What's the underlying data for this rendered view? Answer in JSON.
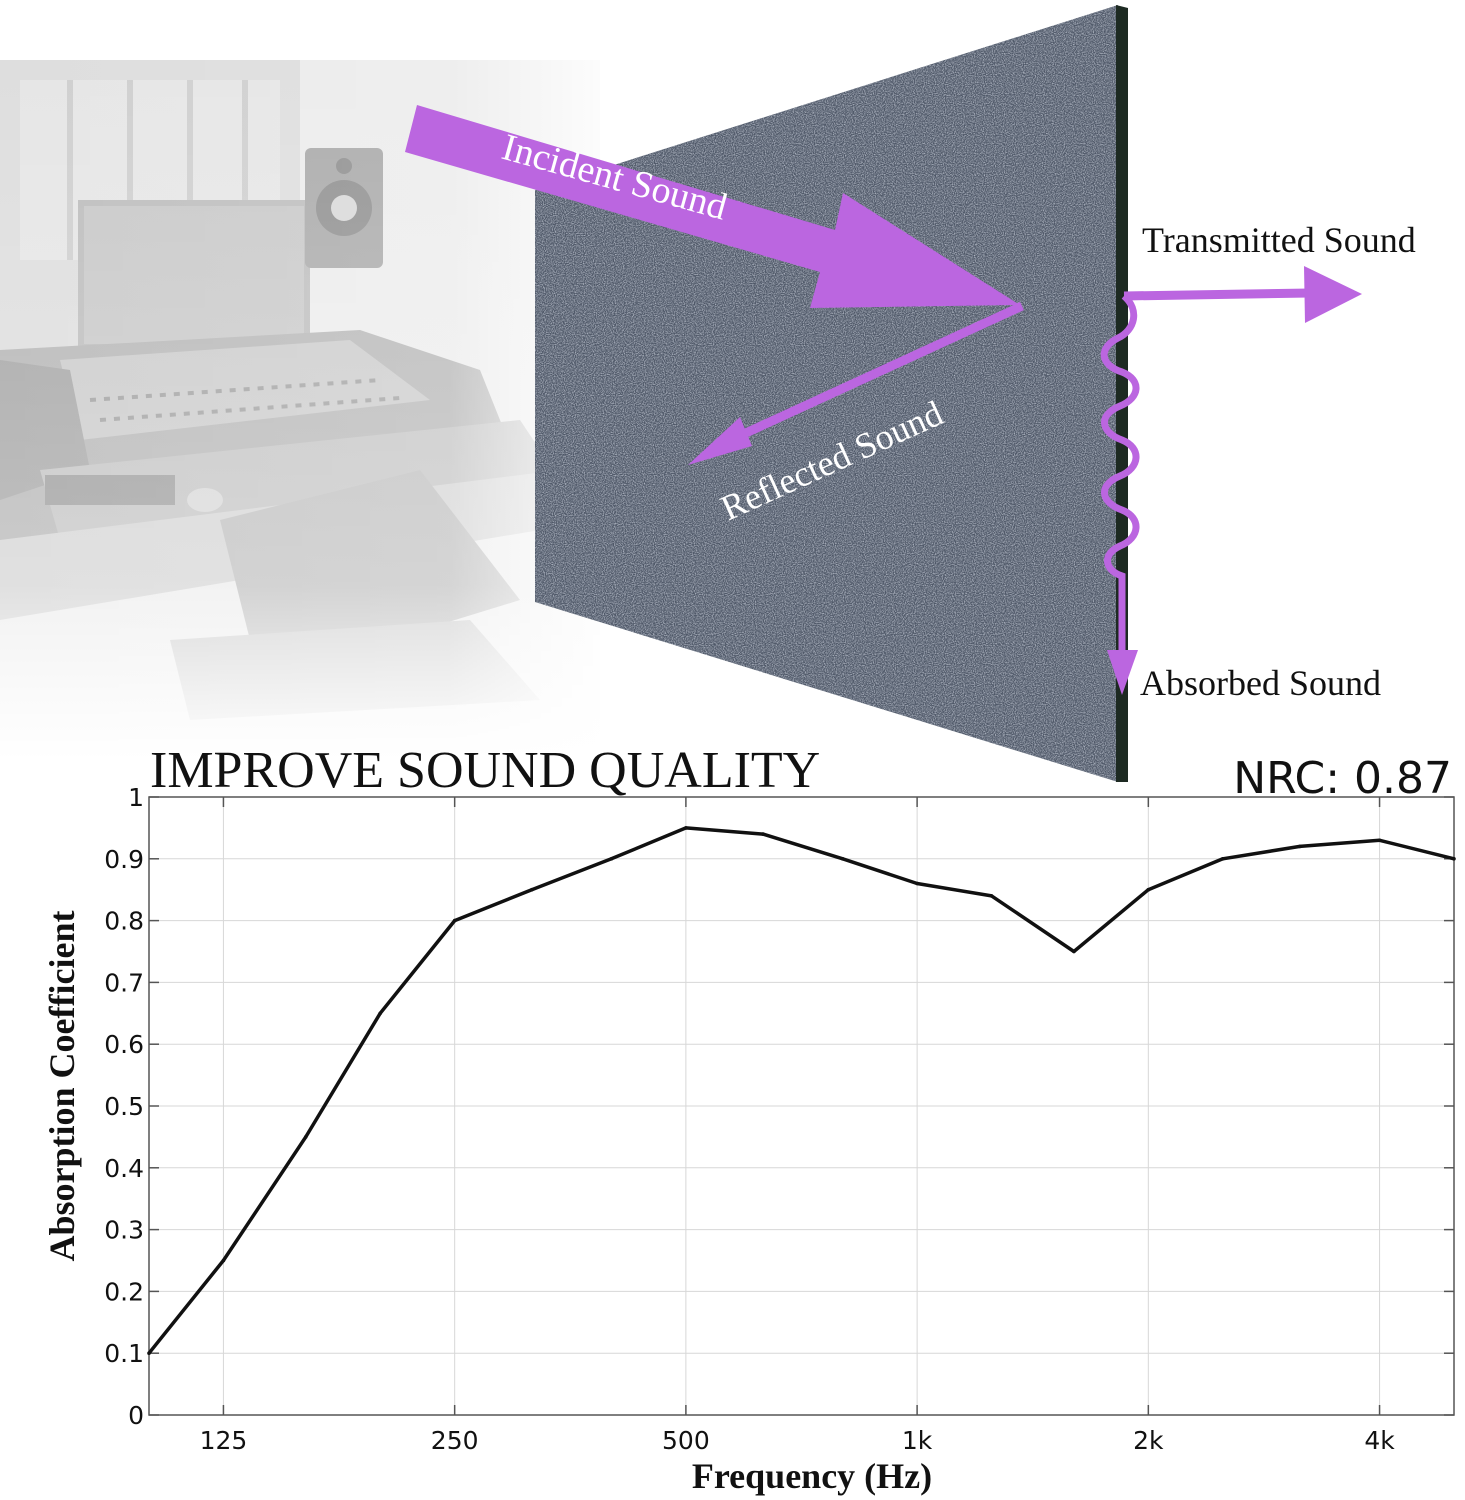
{
  "illustration": {
    "labels": {
      "incident": "Incident Sound",
      "reflected": "Reflected Sound",
      "transmitted": "Transmitted Sound",
      "absorbed": "Absorbed Sound"
    },
    "colors": {
      "arrow": "#bb66e0",
      "panel": "#4f5868",
      "panel_edge": "#1d2a22",
      "studio": "#cfcfcf"
    }
  },
  "chart_data": {
    "type": "line",
    "title": "IMPROVE SOUND QUALITY",
    "annotation": "NRC: 0.87",
    "xlabel": "Frequency (Hz)",
    "ylabel": "Absorption Coefficient",
    "xscale": "log",
    "xlim": [
      100,
      5000
    ],
    "ylim": [
      0,
      1
    ],
    "xticks": [
      {
        "value": 125,
        "label": "125"
      },
      {
        "value": 250,
        "label": "250"
      },
      {
        "value": 500,
        "label": "500"
      },
      {
        "value": 1000,
        "label": "1k"
      },
      {
        "value": 2000,
        "label": "2k"
      },
      {
        "value": 4000,
        "label": "4k"
      }
    ],
    "yticks": [
      {
        "value": 0,
        "label": "0"
      },
      {
        "value": 0.1,
        "label": "0.1"
      },
      {
        "value": 0.2,
        "label": "0.2"
      },
      {
        "value": 0.3,
        "label": "0.3"
      },
      {
        "value": 0.4,
        "label": "0.4"
      },
      {
        "value": 0.5,
        "label": "0.5"
      },
      {
        "value": 0.6,
        "label": "0.6"
      },
      {
        "value": 0.7,
        "label": "0.7"
      },
      {
        "value": 0.8,
        "label": "0.8"
      },
      {
        "value": 0.9,
        "label": "0.9"
      },
      {
        "value": 1,
        "label": "1"
      }
    ],
    "grid": true,
    "series": [
      {
        "color": "#111111",
        "x": [
          100,
          125,
          160,
          200,
          250,
          315,
          400,
          500,
          630,
          800,
          1000,
          1250,
          1600,
          2000,
          2500,
          3150,
          4000,
          5000
        ],
        "y": [
          0.1,
          0.25,
          0.45,
          0.65,
          0.8,
          0.85,
          0.9,
          0.95,
          0.94,
          0.9,
          0.86,
          0.84,
          0.75,
          0.85,
          0.9,
          0.92,
          0.93,
          0.9
        ]
      }
    ]
  }
}
